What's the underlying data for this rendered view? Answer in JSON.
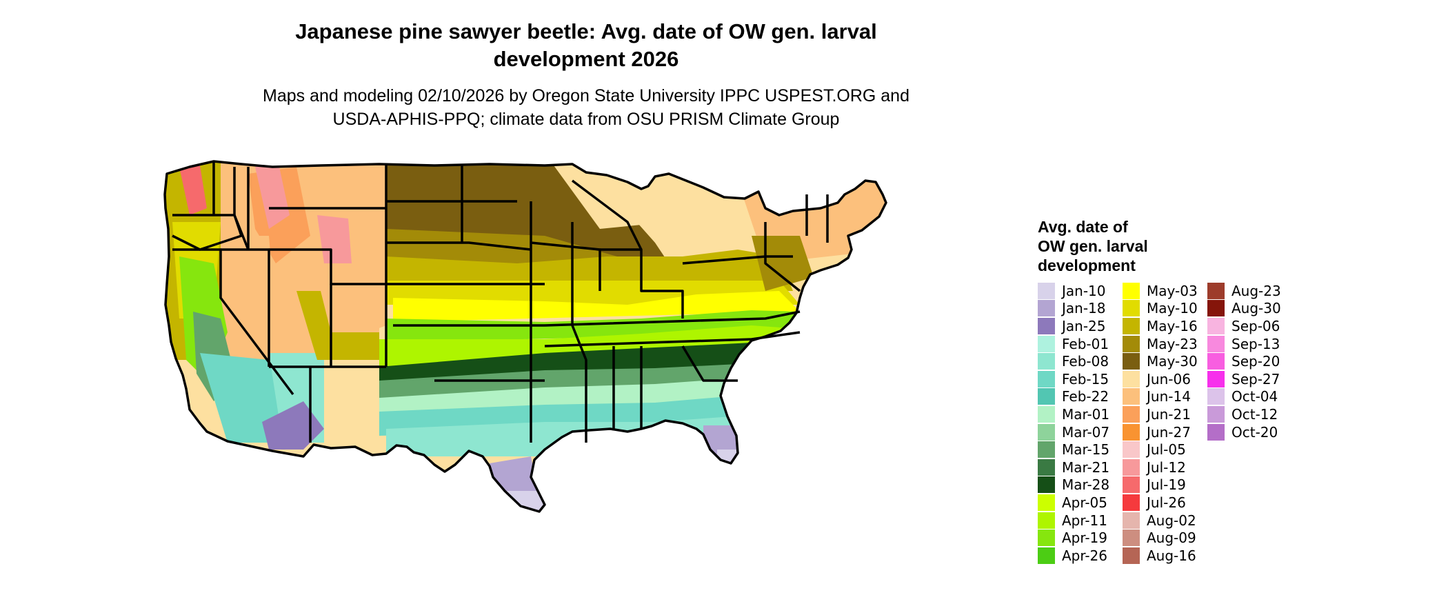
{
  "title_line1": "Japanese pine sawyer beetle: Avg. date of OW gen. larval",
  "title_line2": "development 2026",
  "subtitle_line1": "Maps and modeling 02/10/2026 by Oregon State University IPPC USPEST.ORG and",
  "subtitle_line2": "USDA-APHIS-PPQ; climate data from OSU PRISM Climate Group",
  "legend": {
    "title_lines": [
      "Avg. date of",
      "OW gen. larval",
      "development"
    ],
    "items": [
      {
        "label": "Jan-10",
        "color": "#d8d2ea"
      },
      {
        "label": "Jan-18",
        "color": "#b3a5d2"
      },
      {
        "label": "Jan-25",
        "color": "#8d79bb"
      },
      {
        "label": "Feb-01",
        "color": "#aef2df"
      },
      {
        "label": "Feb-08",
        "color": "#8ee6d0"
      },
      {
        "label": "Feb-15",
        "color": "#6fd8c5"
      },
      {
        "label": "Feb-22",
        "color": "#52c6b2"
      },
      {
        "label": "Mar-01",
        "color": "#b2f2c5"
      },
      {
        "label": "Mar-07",
        "color": "#8ed39b"
      },
      {
        "label": "Mar-15",
        "color": "#62a56b"
      },
      {
        "label": "Mar-21",
        "color": "#3a7a43"
      },
      {
        "label": "Mar-28",
        "color": "#154f17"
      },
      {
        "label": "Apr-05",
        "color": "#ccff00"
      },
      {
        "label": "Apr-11",
        "color": "#aef500"
      },
      {
        "label": "Apr-19",
        "color": "#86e60e"
      },
      {
        "label": "Apr-26",
        "color": "#4ccd14"
      },
      {
        "label": "May-03",
        "color": "#ffff00"
      },
      {
        "label": "May-10",
        "color": "#e1dc00"
      },
      {
        "label": "May-16",
        "color": "#c4b500"
      },
      {
        "label": "May-23",
        "color": "#a38b08"
      },
      {
        "label": "May-30",
        "color": "#7a5e10"
      },
      {
        "label": "Jun-06",
        "color": "#fde0a0"
      },
      {
        "label": "Jun-14",
        "color": "#fcc07c"
      },
      {
        "label": "Jun-21",
        "color": "#fba05a"
      },
      {
        "label": "Jun-27",
        "color": "#f99331"
      },
      {
        "label": "Jul-05",
        "color": "#f9c7c9"
      },
      {
        "label": "Jul-12",
        "color": "#f7999b"
      },
      {
        "label": "Jul-19",
        "color": "#f66a6c"
      },
      {
        "label": "Jul-26",
        "color": "#f53a3d"
      },
      {
        "label": "Aug-02",
        "color": "#e5b5ad"
      },
      {
        "label": "Aug-09",
        "color": "#cd8e80"
      },
      {
        "label": "Aug-16",
        "color": "#b56555"
      },
      {
        "label": "Aug-23",
        "color": "#9d3c2b"
      },
      {
        "label": "Aug-30",
        "color": "#85150a"
      },
      {
        "label": "Sep-06",
        "color": "#f8b4e0"
      },
      {
        "label": "Sep-13",
        "color": "#f889de"
      },
      {
        "label": "Sep-20",
        "color": "#f85ee0"
      },
      {
        "label": "Sep-27",
        "color": "#f730ec"
      },
      {
        "label": "Oct-04",
        "color": "#dcc3ea"
      },
      {
        "label": "Oct-12",
        "color": "#c99ad9"
      },
      {
        "label": "Oct-20",
        "color": "#b46ec8"
      }
    ]
  },
  "map_colors": {
    "florida_tip": "#d8d2ea",
    "gulf_purple": "#b3a5d2",
    "az_purple": "#8d79bb",
    "gulf_mint": "#8ee6d0",
    "gulf_teal": "#6fd8c5",
    "gulf_light": "#b2f2c5",
    "south_green": "#62a56b",
    "dark_green": "#154f17",
    "apr_green": "#aef500",
    "apr_bright": "#86e60e",
    "may_yellow": "#ffff00",
    "olive_light": "#e1dc00",
    "olive": "#c4b500",
    "olive_dark": "#a38b08",
    "brown": "#7a5e10",
    "peach": "#fde0a0",
    "apricot": "#fcc07c",
    "orange": "#fba05a",
    "pink": "#f7999b",
    "rose": "#f66a6c",
    "state_border": "#000000"
  }
}
